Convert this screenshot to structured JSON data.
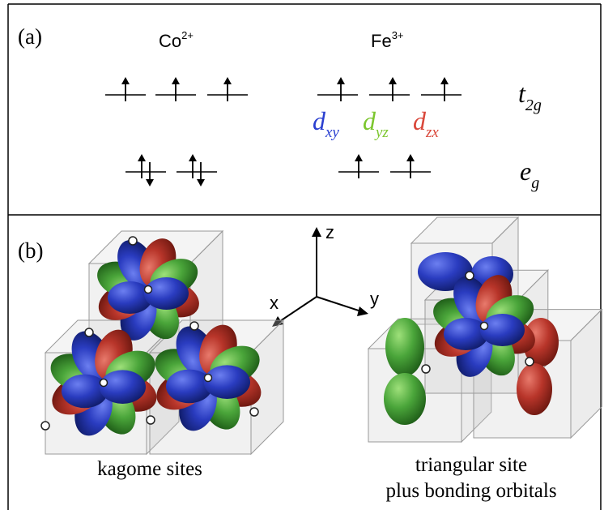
{
  "panel_a": {
    "label": "(a)",
    "ions": [
      {
        "symbol": "Co",
        "charge": "2+"
      },
      {
        "symbol": "Fe",
        "charge": "3+"
      }
    ],
    "levels": [
      {
        "symbol": "t",
        "subscript": "2g"
      },
      {
        "symbol": "e",
        "subscript": "g"
      }
    ],
    "orbitals": [
      {
        "symbol": "d",
        "subscript": "xy",
        "color": "#2a3fd0"
      },
      {
        "symbol": "d",
        "subscript": "yz",
        "color": "#7cc62e"
      },
      {
        "symbol": "d",
        "subscript": "zx",
        "color": "#d9473a"
      }
    ]
  },
  "panel_b": {
    "label": "(b)",
    "axes": [
      "z",
      "x",
      "y"
    ],
    "captions": [
      "kagome sites",
      "triangular site",
      "plus bonding orbitals"
    ]
  }
}
